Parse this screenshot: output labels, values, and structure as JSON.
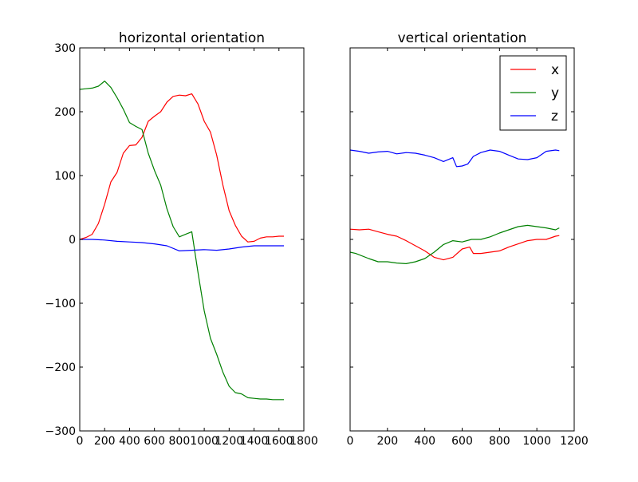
{
  "colors": {
    "x": "#ff0000",
    "y": "#008000",
    "z": "#0000ff",
    "axes": "#000000",
    "background": "#ffffff"
  },
  "chart_data": [
    {
      "type": "line",
      "title": "horizontal orientation",
      "xlabel": "",
      "ylabel": "",
      "xlim": [
        0,
        1800
      ],
      "ylim": [
        -300,
        300
      ],
      "xticks": [
        0,
        200,
        400,
        600,
        800,
        1000,
        1200,
        1400,
        1600,
        1800
      ],
      "xtick_labels": [
        "0",
        "200",
        "400",
        "600",
        "800",
        "1000",
        "1200",
        "1400",
        "1600",
        "1800"
      ],
      "yticks": [
        -300,
        -200,
        -100,
        0,
        100,
        200,
        300
      ],
      "ytick_labels": [
        "−300",
        "−200",
        "−100",
        "0",
        "100",
        "200",
        "300"
      ],
      "grid": false,
      "series": [
        {
          "name": "x",
          "color": "#ff0000",
          "points": [
            [
              0,
              0
            ],
            [
              50,
              3
            ],
            [
              100,
              8
            ],
            [
              150,
              25
            ],
            [
              200,
              55
            ],
            [
              250,
              90
            ],
            [
              300,
              105
            ],
            [
              350,
              135
            ],
            [
              400,
              147
            ],
            [
              450,
              148
            ],
            [
              500,
              160
            ],
            [
              550,
              185
            ],
            [
              600,
              193
            ],
            [
              650,
              200
            ],
            [
              700,
              215
            ],
            [
              750,
              224
            ],
            [
              800,
              226
            ],
            [
              850,
              225
            ],
            [
              900,
              228
            ],
            [
              950,
              212
            ],
            [
              1000,
              185
            ],
            [
              1050,
              168
            ],
            [
              1100,
              132
            ],
            [
              1150,
              85
            ],
            [
              1200,
              45
            ],
            [
              1250,
              22
            ],
            [
              1300,
              5
            ],
            [
              1350,
              -4
            ],
            [
              1400,
              -3
            ],
            [
              1450,
              2
            ],
            [
              1500,
              4
            ],
            [
              1550,
              4
            ],
            [
              1600,
              5
            ],
            [
              1640,
              5
            ]
          ]
        },
        {
          "name": "y",
          "color": "#008000",
          "points": [
            [
              0,
              235
            ],
            [
              50,
              236
            ],
            [
              100,
              237
            ],
            [
              150,
              240
            ],
            [
              200,
              248
            ],
            [
              250,
              238
            ],
            [
              300,
              222
            ],
            [
              350,
              204
            ],
            [
              400,
              183
            ],
            [
              450,
              177
            ],
            [
              500,
              172
            ],
            [
              550,
              135
            ],
            [
              600,
              108
            ],
            [
              650,
              85
            ],
            [
              700,
              48
            ],
            [
              750,
              20
            ],
            [
              800,
              4
            ],
            [
              850,
              8
            ],
            [
              900,
              12
            ],
            [
              950,
              -52
            ],
            [
              1000,
              -112
            ],
            [
              1050,
              -155
            ],
            [
              1100,
              -180
            ],
            [
              1150,
              -208
            ],
            [
              1200,
              -230
            ],
            [
              1250,
              -240
            ],
            [
              1300,
              -242
            ],
            [
              1350,
              -248
            ],
            [
              1400,
              -249
            ],
            [
              1450,
              -250
            ],
            [
              1500,
              -250
            ],
            [
              1550,
              -251
            ],
            [
              1600,
              -251
            ],
            [
              1640,
              -251
            ]
          ]
        },
        {
          "name": "z",
          "color": "#0000ff",
          "points": [
            [
              0,
              0
            ],
            [
              100,
              0
            ],
            [
              200,
              -1
            ],
            [
              300,
              -3
            ],
            [
              400,
              -4
            ],
            [
              500,
              -5
            ],
            [
              600,
              -7
            ],
            [
              700,
              -10
            ],
            [
              800,
              -18
            ],
            [
              900,
              -17
            ],
            [
              1000,
              -16
            ],
            [
              1100,
              -17
            ],
            [
              1200,
              -15
            ],
            [
              1300,
              -12
            ],
            [
              1400,
              -10
            ],
            [
              1500,
              -10
            ],
            [
              1600,
              -10
            ],
            [
              1640,
              -10
            ]
          ]
        }
      ]
    },
    {
      "type": "line",
      "title": "vertical orientation",
      "xlabel": "",
      "ylabel": "",
      "xlim": [
        0,
        1200
      ],
      "ylim": [
        -300,
        300
      ],
      "xticks": [
        0,
        200,
        400,
        600,
        800,
        1000,
        1200
      ],
      "xtick_labels": [
        "0",
        "200",
        "400",
        "600",
        "800",
        "1000",
        "1200"
      ],
      "yticks": [
        -300,
        -200,
        -100,
        0,
        100,
        200,
        300
      ],
      "grid": false,
      "legend": {
        "position": "upper right",
        "entries": [
          "x",
          "y",
          "z"
        ]
      },
      "series": [
        {
          "name": "x",
          "color": "#ff0000",
          "points": [
            [
              0,
              16
            ],
            [
              50,
              15
            ],
            [
              100,
              16
            ],
            [
              150,
              12
            ],
            [
              200,
              8
            ],
            [
              250,
              5
            ],
            [
              300,
              -2
            ],
            [
              350,
              -10
            ],
            [
              400,
              -18
            ],
            [
              450,
              -28
            ],
            [
              500,
              -32
            ],
            [
              550,
              -28
            ],
            [
              600,
              -15
            ],
            [
              640,
              -12
            ],
            [
              660,
              -22
            ],
            [
              700,
              -22
            ],
            [
              750,
              -20
            ],
            [
              800,
              -18
            ],
            [
              850,
              -12
            ],
            [
              900,
              -7
            ],
            [
              950,
              -2
            ],
            [
              1000,
              0
            ],
            [
              1050,
              0
            ],
            [
              1100,
              5
            ],
            [
              1120,
              6
            ]
          ]
        },
        {
          "name": "y",
          "color": "#008000",
          "points": [
            [
              0,
              -20
            ],
            [
              30,
              -22
            ],
            [
              100,
              -30
            ],
            [
              150,
              -35
            ],
            [
              200,
              -35
            ],
            [
              250,
              -37
            ],
            [
              300,
              -38
            ],
            [
              350,
              -35
            ],
            [
              400,
              -30
            ],
            [
              450,
              -20
            ],
            [
              500,
              -8
            ],
            [
              550,
              -2
            ],
            [
              600,
              -4
            ],
            [
              650,
              0
            ],
            [
              700,
              0
            ],
            [
              750,
              4
            ],
            [
              800,
              10
            ],
            [
              850,
              15
            ],
            [
              900,
              20
            ],
            [
              950,
              22
            ],
            [
              1000,
              20
            ],
            [
              1050,
              18
            ],
            [
              1100,
              15
            ],
            [
              1120,
              18
            ]
          ]
        },
        {
          "name": "z",
          "color": "#0000ff",
          "points": [
            [
              0,
              140
            ],
            [
              50,
              138
            ],
            [
              100,
              135
            ],
            [
              150,
              137
            ],
            [
              200,
              138
            ],
            [
              250,
              134
            ],
            [
              300,
              136
            ],
            [
              350,
              135
            ],
            [
              400,
              132
            ],
            [
              450,
              128
            ],
            [
              500,
              122
            ],
            [
              550,
              128
            ],
            [
              570,
              114
            ],
            [
              600,
              115
            ],
            [
              630,
              118
            ],
            [
              660,
              130
            ],
            [
              700,
              136
            ],
            [
              750,
              140
            ],
            [
              800,
              138
            ],
            [
              850,
              132
            ],
            [
              900,
              126
            ],
            [
              950,
              125
            ],
            [
              1000,
              128
            ],
            [
              1050,
              138
            ],
            [
              1100,
              140
            ],
            [
              1120,
              139
            ]
          ]
        }
      ]
    }
  ]
}
